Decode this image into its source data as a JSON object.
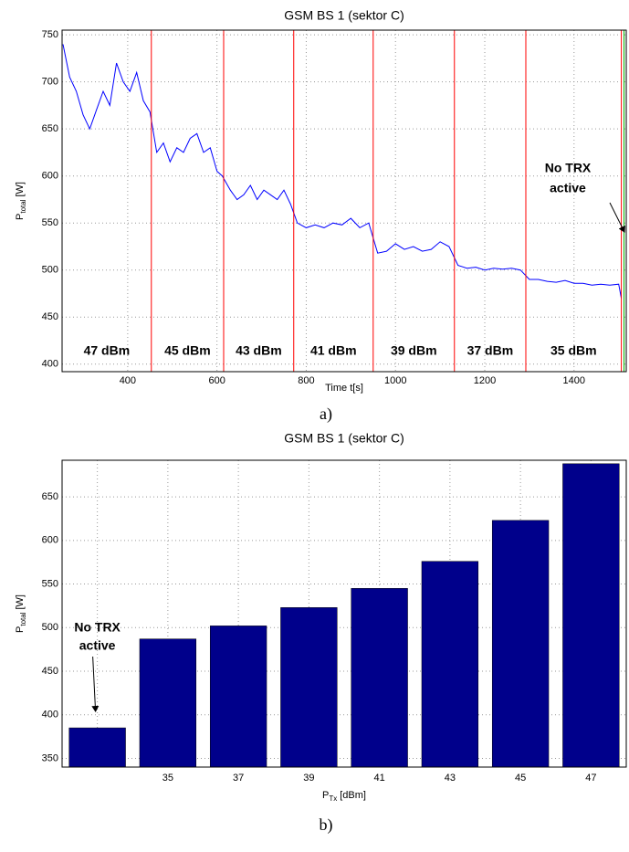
{
  "chart_data": [
    {
      "type": "line",
      "title": "GSM BS 1 (sektor C)",
      "ylabel": {
        "main": "P",
        "sub": "total",
        "unit": "[W]"
      },
      "xlabel": "Time t[s]",
      "caption": "a)",
      "x": [
        255,
        270,
        285,
        300,
        315,
        330,
        345,
        360,
        375,
        390,
        405,
        420,
        435,
        450,
        465,
        480,
        495,
        510,
        525,
        540,
        555,
        570,
        585,
        600,
        612,
        630,
        645,
        660,
        675,
        690,
        705,
        720,
        735,
        750,
        765,
        780,
        800,
        820,
        840,
        860,
        880,
        900,
        920,
        940,
        960,
        980,
        1000,
        1020,
        1040,
        1060,
        1080,
        1100,
        1120,
        1140,
        1160,
        1180,
        1200,
        1220,
        1240,
        1260,
        1280,
        1300,
        1320,
        1340,
        1360,
        1380,
        1400,
        1420,
        1440,
        1460,
        1480,
        1500,
        1506
      ],
      "values": [
        740,
        705,
        690,
        665,
        650,
        670,
        690,
        675,
        720,
        700,
        690,
        710,
        680,
        668,
        625,
        635,
        615,
        630,
        625,
        640,
        645,
        625,
        630,
        605,
        600,
        585,
        575,
        580,
        590,
        575,
        585,
        580,
        575,
        585,
        570,
        550,
        545,
        548,
        545,
        550,
        548,
        555,
        545,
        550,
        518,
        520,
        528,
        522,
        525,
        520,
        522,
        530,
        525,
        505,
        502,
        503,
        500,
        502,
        501,
        502,
        500,
        490,
        490,
        488,
        487,
        489,
        486,
        486,
        484,
        485,
        484,
        485,
        470
      ],
      "color": "#0000ff",
      "xlim": [
        253,
        1517
      ],
      "ylim": [
        392,
        755
      ],
      "xticks": [
        400,
        600,
        800,
        1000,
        1200,
        1400
      ],
      "yticks": [
        400,
        450,
        500,
        550,
        600,
        650,
        700,
        750
      ],
      "grid": true,
      "vlines": [
        453,
        615,
        772,
        950,
        1132,
        1292,
        1506
      ],
      "vline_color": "#ff0000",
      "end_line": 1512,
      "end_line_color": "#00b000",
      "segment_labels": [
        "47 dBm",
        "45 dBm",
        "43 dBm",
        "41 dBm",
        "39 dBm",
        "37 dBm",
        "35 dBm"
      ],
      "annotation": [
        "No TRX",
        "active"
      ]
    },
    {
      "type": "bar",
      "title": "GSM BS 1 (sektor C)",
      "ylabel": {
        "main": "P",
        "sub": "total",
        "unit": "[W]"
      },
      "xlabel": {
        "main": "P",
        "sub": "Tx",
        "unit": "[dBm]"
      },
      "caption": "b)",
      "categories": [
        null,
        "35",
        "37",
        "39",
        "41",
        "43",
        "45",
        "47"
      ],
      "values": [
        385,
        487,
        502,
        523,
        545,
        576,
        623,
        688
      ],
      "color": "#00008b",
      "ylim": [
        340,
        692
      ],
      "yticks": [
        350,
        400,
        450,
        500,
        550,
        600,
        650
      ],
      "grid": true,
      "annotation": [
        "No TRX",
        "active"
      ]
    }
  ]
}
